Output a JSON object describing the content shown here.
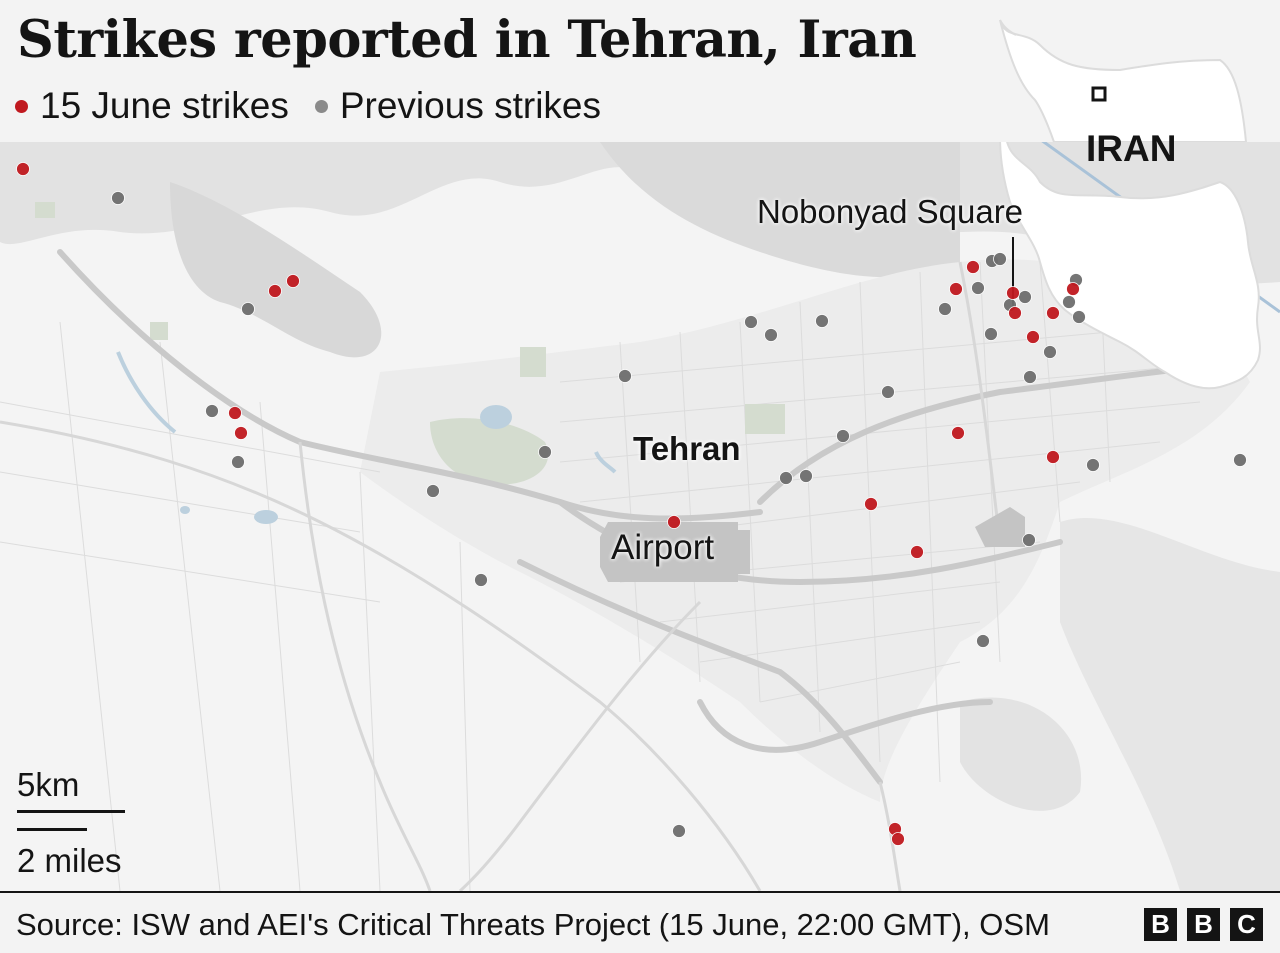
{
  "title": "Strikes reported in Tehran, Iran",
  "legend": {
    "june15": {
      "label": "15 June strikes",
      "color": "#c0191f"
    },
    "previous": {
      "label": "Previous strikes",
      "color": "#6e6e6e"
    }
  },
  "map_labels": {
    "city": "Tehran",
    "airport": "Airport",
    "landmark": "Nobonyad Square",
    "inset_country": "IRAN"
  },
  "scale": {
    "km": "5km",
    "miles": "2 miles"
  },
  "source": "Source: ISW and AEI's Critical Threats Project (15 June, 22:00 GMT), OSM",
  "brand": [
    "B",
    "B",
    "C"
  ],
  "colors": {
    "strike_june15": "#c0191f",
    "strike_previous": "#6e6e6e",
    "background": "#f3f3f3"
  }
}
